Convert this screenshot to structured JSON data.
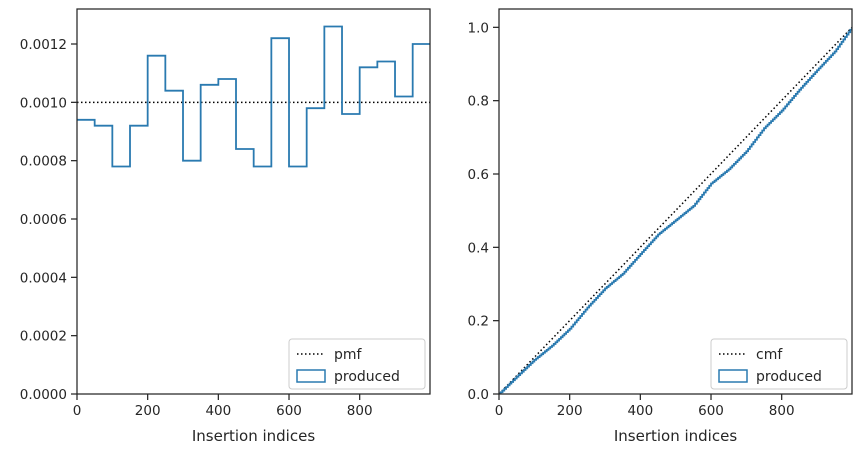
{
  "chart_data": [
    {
      "type": "step",
      "title": "",
      "xlabel": "Insertion indices",
      "ylabel": "",
      "xlim": [
        0,
        999
      ],
      "ylim": [
        0,
        0.00132
      ],
      "xticks": [
        0,
        200,
        400,
        600,
        800
      ],
      "xtick_labels": [
        "0",
        "200",
        "400",
        "600",
        "800"
      ],
      "yticks": [
        0,
        0.0002,
        0.0004,
        0.0006,
        0.0008,
        0.001,
        0.0012
      ],
      "ytick_labels": [
        "0.0000",
        "0.0002",
        "0.0004",
        "0.0006",
        "0.0008",
        "0.0010",
        "0.0012"
      ],
      "legend_position": "lower-right",
      "series": [
        {
          "name": "pmf",
          "style": "dotted",
          "color": "#000000",
          "x": [
            0,
            999
          ],
          "values": [
            0.001,
            0.001
          ]
        },
        {
          "name": "produced",
          "style": "step",
          "color": "#2a7ab0",
          "bin_edges": [
            0,
            50,
            100,
            150,
            200,
            250,
            300,
            350,
            400,
            450,
            500,
            550,
            600,
            650,
            700,
            750,
            800,
            850,
            900,
            950,
            1000
          ],
          "values": [
            0.00094,
            0.00092,
            0.00078,
            0.00092,
            0.00116,
            0.00104,
            0.0008,
            0.00106,
            0.00108,
            0.00084,
            0.00078,
            0.00122,
            0.00078,
            0.00098,
            0.00126,
            0.00096,
            0.00112,
            0.00114,
            0.00102,
            0.0012
          ]
        }
      ],
      "legend": [
        "pmf",
        "produced"
      ]
    },
    {
      "type": "step",
      "title": "",
      "xlabel": "Insertion indices",
      "ylabel": "",
      "xlim": [
        0,
        999
      ],
      "ylim": [
        0,
        1.05
      ],
      "xticks": [
        0,
        200,
        400,
        600,
        800
      ],
      "xtick_labels": [
        "0",
        "200",
        "400",
        "600",
        "800"
      ],
      "yticks": [
        0,
        0.2,
        0.4,
        0.6,
        0.8,
        1.0
      ],
      "ytick_labels": [
        "0.0",
        "0.2",
        "0.4",
        "0.6",
        "0.8",
        "1.0"
      ],
      "legend_position": "lower-right",
      "series": [
        {
          "name": "cmf",
          "style": "dotted",
          "color": "#000000",
          "x": [
            0,
            999
          ],
          "values": [
            0,
            1.0
          ]
        },
        {
          "name": "produced",
          "style": "step",
          "color": "#2a7ab0",
          "x": [
            0,
            50,
            100,
            150,
            200,
            250,
            300,
            350,
            400,
            450,
            500,
            550,
            600,
            650,
            700,
            750,
            800,
            850,
            900,
            950,
            999
          ],
          "values": [
            0,
            0.047,
            0.093,
            0.132,
            0.178,
            0.236,
            0.288,
            0.328,
            0.382,
            0.435,
            0.474,
            0.513,
            0.574,
            0.613,
            0.662,
            0.725,
            0.773,
            0.83,
            0.883,
            0.934,
            1.0
          ]
        }
      ],
      "legend": [
        "cmf",
        "produced"
      ]
    }
  ]
}
